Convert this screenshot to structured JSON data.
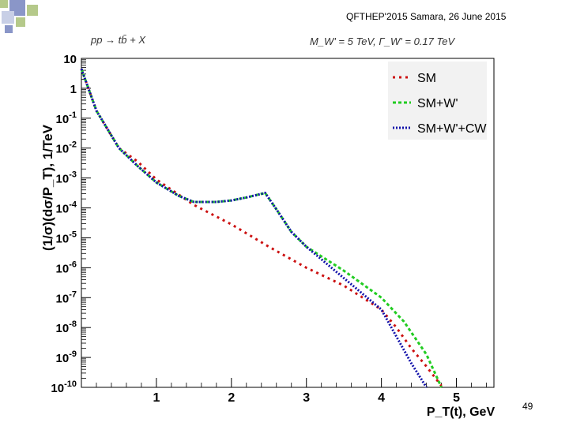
{
  "slide": {
    "header": "QFTHEP'2015 Samara,  26 June 2015",
    "page_number": "49"
  },
  "colors": {
    "sm": "#cc1111",
    "sm_wprime": "#22cc22",
    "sm_wprime_cw": "#1111aa",
    "decor_blue": "#8a96c8",
    "decor_green": "#b5c98a"
  },
  "chart_data": {
    "type": "line",
    "title_left": "pp → tb̄ + X",
    "title_right": "M_W' = 5 TeV, Γ_W' = 0.17 TeV",
    "xlabel": "P_T(t), GeV",
    "ylabel": "(1/σ)(dσ/P_T), 1/TeV",
    "xlim": [
      0,
      5.5
    ],
    "ylim_log10": [
      -10,
      1
    ],
    "x_ticks": [
      {
        "value": 1,
        "label": "1"
      },
      {
        "value": 2,
        "label": "2"
      },
      {
        "value": 3,
        "label": "3"
      },
      {
        "value": 4,
        "label": "4"
      },
      {
        "value": 5,
        "label": "5"
      }
    ],
    "y_ticks": [
      {
        "exp": 1,
        "base": "10",
        "sup": ""
      },
      {
        "exp": 0,
        "base": "1",
        "sup": ""
      },
      {
        "exp": -1,
        "base": "10",
        "sup": "-1"
      },
      {
        "exp": -2,
        "base": "10",
        "sup": "-2"
      },
      {
        "exp": -3,
        "base": "10",
        "sup": "-3"
      },
      {
        "exp": -4,
        "base": "10",
        "sup": "-4"
      },
      {
        "exp": -5,
        "base": "10",
        "sup": "-5"
      },
      {
        "exp": -6,
        "base": "10",
        "sup": "-6"
      },
      {
        "exp": -7,
        "base": "10",
        "sup": "-7"
      },
      {
        "exp": -8,
        "base": "10",
        "sup": "-8"
      },
      {
        "exp": -9,
        "base": "10",
        "sup": "-9"
      },
      {
        "exp": -10,
        "base": "10",
        "sup": "-10"
      }
    ],
    "legend_position": "top-right",
    "series": [
      {
        "name": "SM",
        "color": "#cc1111",
        "dash": "3,5",
        "points": [
          [
            0.0,
            0.65
          ],
          [
            0.2,
            -0.75
          ],
          [
            0.5,
            -2.0
          ],
          [
            0.75,
            -2.45
          ],
          [
            1.0,
            -3.05
          ],
          [
            1.5,
            -3.9
          ],
          [
            2.0,
            -4.55
          ],
          [
            2.5,
            -5.3
          ],
          [
            3.0,
            -6.0
          ],
          [
            3.5,
            -6.6
          ],
          [
            4.0,
            -7.4
          ],
          [
            4.2,
            -8.0
          ],
          [
            4.4,
            -8.7
          ],
          [
            4.6,
            -9.3
          ],
          [
            4.8,
            -9.95
          ]
        ]
      },
      {
        "name": "SM+W'",
        "color": "#22cc22",
        "dash": "4,3",
        "points": [
          [
            0.0,
            0.65
          ],
          [
            0.2,
            -0.75
          ],
          [
            0.5,
            -2.0
          ],
          [
            0.75,
            -2.6
          ],
          [
            1.0,
            -3.15
          ],
          [
            1.3,
            -3.6
          ],
          [
            1.5,
            -3.8
          ],
          [
            1.8,
            -3.8
          ],
          [
            2.0,
            -3.75
          ],
          [
            2.2,
            -3.65
          ],
          [
            2.45,
            -3.5
          ],
          [
            2.6,
            -4.05
          ],
          [
            2.8,
            -4.8
          ],
          [
            3.0,
            -5.3
          ],
          [
            3.5,
            -6.1
          ],
          [
            4.0,
            -7.0
          ],
          [
            4.3,
            -7.8
          ],
          [
            4.6,
            -8.9
          ],
          [
            4.8,
            -10.0
          ]
        ]
      },
      {
        "name": "SM+W'+CW",
        "color": "#1111aa",
        "dash": "2,2",
        "points": [
          [
            0.0,
            0.65
          ],
          [
            0.2,
            -0.75
          ],
          [
            0.5,
            -2.0
          ],
          [
            0.75,
            -2.6
          ],
          [
            1.0,
            -3.15
          ],
          [
            1.3,
            -3.6
          ],
          [
            1.5,
            -3.8
          ],
          [
            1.8,
            -3.8
          ],
          [
            2.0,
            -3.75
          ],
          [
            2.2,
            -3.65
          ],
          [
            2.45,
            -3.5
          ],
          [
            2.6,
            -4.05
          ],
          [
            2.8,
            -4.8
          ],
          [
            3.0,
            -5.3
          ],
          [
            3.5,
            -6.35
          ],
          [
            4.0,
            -7.4
          ],
          [
            4.2,
            -8.3
          ],
          [
            4.4,
            -9.2
          ],
          [
            4.6,
            -10.0
          ]
        ]
      }
    ]
  }
}
